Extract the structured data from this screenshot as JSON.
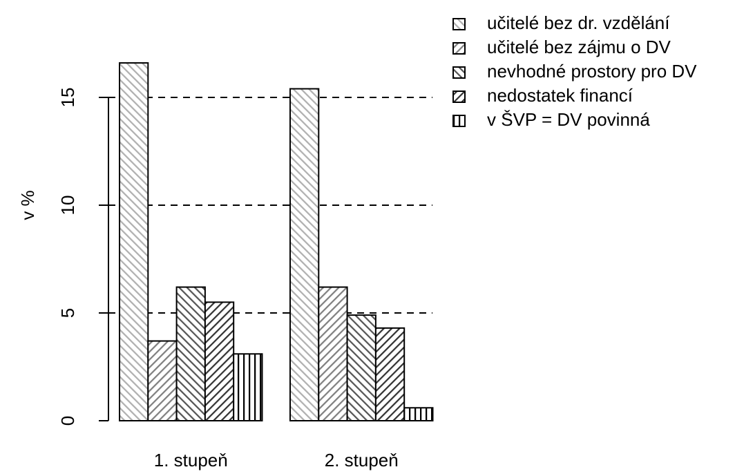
{
  "chart_data": {
    "type": "bar",
    "ylabel": "v %",
    "categories": [
      "1. stupeň",
      "2. stupeň"
    ],
    "series": [
      {
        "name": "učitelé bez dr. vzdělání",
        "color": "#b0b0b0",
        "hatch_angle": 45,
        "values": [
          16.6,
          15.4
        ]
      },
      {
        "name": "učitelé bez zájmu o DV",
        "color": "#808080",
        "hatch_angle": 135,
        "values": [
          3.7,
          6.2
        ]
      },
      {
        "name": "nevhodné prostory pro DV",
        "color": "#555555",
        "hatch_angle": 45,
        "values": [
          6.2,
          4.9
        ]
      },
      {
        "name": "nedostatek financí",
        "color": "#333333",
        "hatch_angle": 135,
        "values": [
          5.5,
          4.3
        ]
      },
      {
        "name": "v ŠVP = DV povinná",
        "color": "#000000",
        "hatch_angle": 90,
        "values": [
          3.1,
          0.6
        ]
      }
    ],
    "ylim": [
      0,
      15
    ],
    "yticks": [
      0,
      5,
      10,
      15
    ],
    "grid": true,
    "legend": "top-right"
  }
}
